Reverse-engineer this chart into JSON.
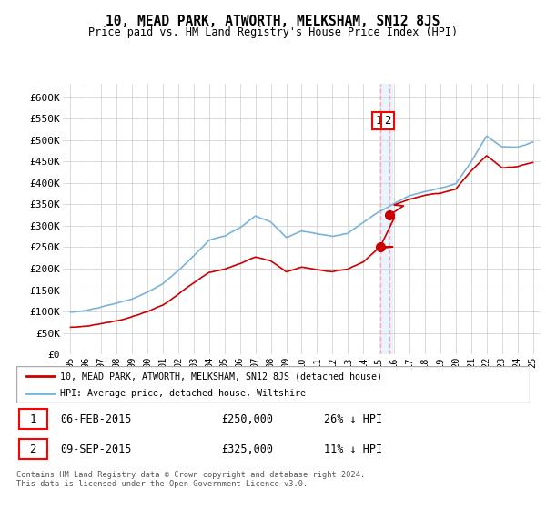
{
  "title": "10, MEAD PARK, ATWORTH, MELKSHAM, SN12 8JS",
  "subtitle": "Price paid vs. HM Land Registry's House Price Index (HPI)",
  "ylabel_ticks": [
    "£0",
    "£50K",
    "£100K",
    "£150K",
    "£200K",
    "£250K",
    "£300K",
    "£350K",
    "£400K",
    "£450K",
    "£500K",
    "£550K",
    "£600K"
  ],
  "ytick_values": [
    0,
    50000,
    100000,
    150000,
    200000,
    250000,
    300000,
    350000,
    400000,
    450000,
    500000,
    550000,
    600000
  ],
  "ylim": [
    0,
    630000
  ],
  "hpi_color": "#7ab3d8",
  "price_color": "#cc0000",
  "sale1_date": "06-FEB-2015",
  "sale1_price": 250000,
  "sale1_label": "26% ↓ HPI",
  "sale2_date": "09-SEP-2015",
  "sale2_price": 325000,
  "sale2_label": "11% ↓ HPI",
  "sale1_x": 2015.1,
  "sale2_x": 2015.7,
  "vline_x": 2015.4,
  "legend_line1": "10, MEAD PARK, ATWORTH, MELKSHAM, SN12 8JS (detached house)",
  "legend_line2": "HPI: Average price, detached house, Wiltshire",
  "footer": "Contains HM Land Registry data © Crown copyright and database right 2024.\nThis data is licensed under the Open Government Licence v3.0.",
  "xtick_labels": [
    "95",
    "96",
    "97",
    "98",
    "99",
    "00",
    "01",
    "02",
    "03",
    "04",
    "05",
    "06",
    "07",
    "08",
    "09",
    "10",
    "11",
    "12",
    "13",
    "14",
    "15",
    "16",
    "17",
    "18",
    "19",
    "20",
    "21",
    "22",
    "23",
    "24",
    "25"
  ],
  "xtick_values": [
    1995,
    1996,
    1997,
    1998,
    1999,
    2000,
    2001,
    2002,
    2003,
    2004,
    2005,
    2006,
    2007,
    2008,
    2009,
    2010,
    2011,
    2012,
    2013,
    2014,
    2015,
    2016,
    2017,
    2018,
    2019,
    2020,
    2021,
    2022,
    2023,
    2024,
    2025
  ]
}
